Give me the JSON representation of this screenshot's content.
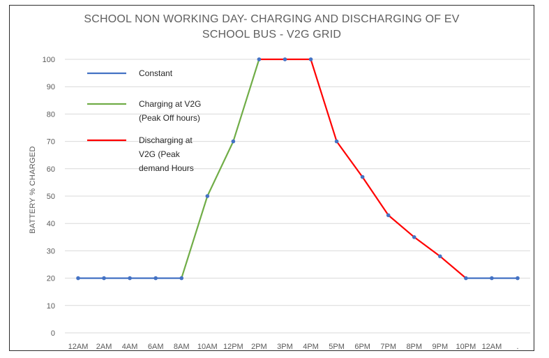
{
  "chart_data": {
    "type": "line",
    "title_line1": "SCHOOL NON WORKING DAY- CHARGING AND DISCHARGING OF EV",
    "title_line2": "SCHOOL BUS - V2G GRID",
    "ylabel": "BATTERY % CHARGED",
    "xlabel": "",
    "ylim": [
      0,
      100
    ],
    "yticks": [
      0,
      10,
      20,
      30,
      40,
      50,
      60,
      70,
      80,
      90,
      100
    ],
    "categories": [
      "12AM",
      "2AM",
      "4AM",
      "6AM",
      "8AM",
      "10AM",
      "12PM",
      "2PM",
      "3PM",
      "4PM",
      "5PM",
      "6PM",
      "7PM",
      "8PM",
      "9PM",
      "10PM",
      "12AM",
      "."
    ],
    "values": [
      20,
      20,
      20,
      20,
      20,
      50,
      70,
      100,
      100,
      100,
      70,
      57,
      43,
      35,
      28,
      20,
      20,
      20
    ],
    "grid": true,
    "legend_position": "top-left",
    "series": [
      {
        "name": "Constant",
        "color": "#4472c4",
        "segments": [
          [
            0,
            4
          ],
          [
            15,
            17
          ]
        ]
      },
      {
        "name": "Charging at V2G (Peak Off hours)",
        "lines": [
          "Charging at V2G",
          "(Peak Off hours)"
        ],
        "color": "#70ad47",
        "segments": [
          [
            4,
            7
          ]
        ]
      },
      {
        "name": "Discharging at V2G (Peak demand Hours",
        "lines": [
          "Discharging at",
          "V2G (Peak",
          "demand Hours"
        ],
        "color": "#ff0000",
        "segments": [
          [
            7,
            15
          ]
        ]
      }
    ],
    "marker_color": "#4472c4"
  }
}
